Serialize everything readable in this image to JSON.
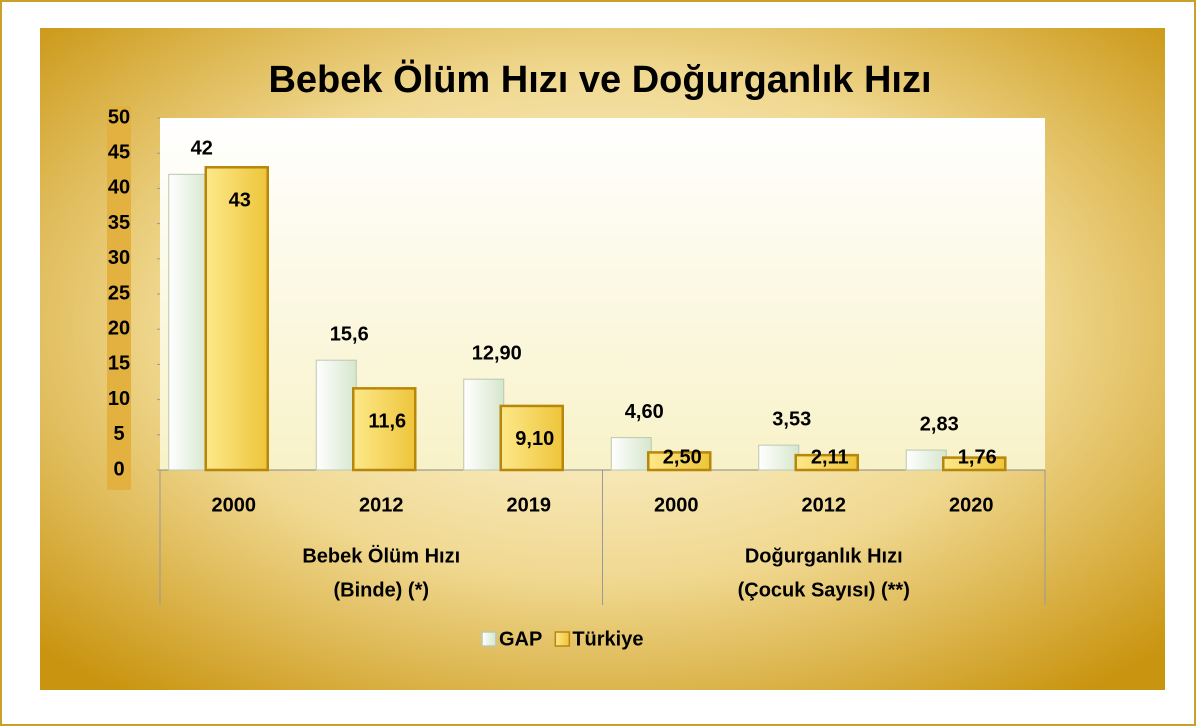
{
  "chart_data": {
    "type": "bar",
    "title": "Bebek Ölüm Hızı ve Doğurganlık Hızı",
    "categories": [
      "2000",
      "2012",
      "2019",
      "2000",
      "2012",
      "2020"
    ],
    "groups": [
      [
        "Bebek Ölüm Hızı",
        "(Binde) (*)"
      ],
      [
        "Doğurganlık Hızı",
        "(Çocuk Sayısı) (**)"
      ]
    ],
    "series": [
      {
        "name": "GAP",
        "color": "#e6f2df",
        "values": [
          42,
          15.6,
          12.9,
          4.6,
          3.53,
          2.83
        ],
        "value_labels": [
          "42",
          "15,6",
          "12,90",
          "4,60",
          "3,53",
          "2,83"
        ]
      },
      {
        "name": "Türkiye",
        "color": "#f6d559",
        "values": [
          43,
          11.6,
          9.1,
          2.5,
          2.11,
          1.76
        ],
        "value_labels": [
          "43",
          "11,6",
          "9,10",
          "2,50",
          "2,11",
          "1,76"
        ]
      }
    ],
    "ylim": [
      0,
      50
    ],
    "yticks": [
      0,
      5,
      10,
      15,
      20,
      25,
      30,
      35,
      40,
      45,
      50
    ],
    "legend": "bottom"
  }
}
